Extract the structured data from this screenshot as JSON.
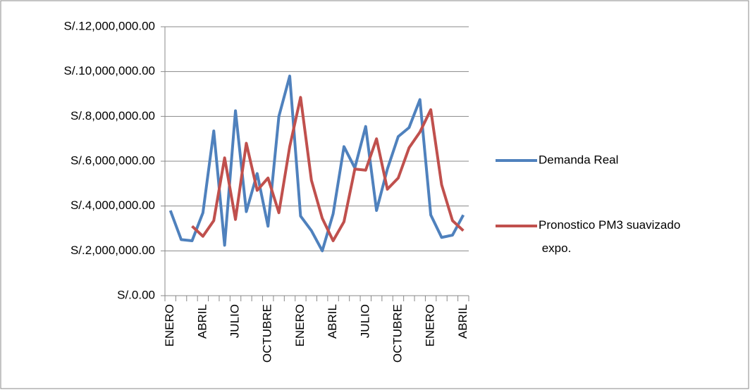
{
  "chart_data": {
    "type": "line",
    "categories": [
      "ENERO",
      null,
      null,
      "ABRIL",
      null,
      null,
      "JULIO",
      null,
      null,
      "OCTUBRE",
      null,
      null,
      "ENERO",
      null,
      null,
      "ABRIL",
      null,
      null,
      "JULIO",
      null,
      null,
      "OCTUBRE",
      null,
      null,
      "ENERO",
      null,
      null,
      "ABRIL"
    ],
    "series": [
      {
        "name": "Demanda Real",
        "color": "#4f81bd",
        "values": [
          3800000,
          2500000,
          2450000,
          3700000,
          7350000,
          2250000,
          8250000,
          3750000,
          5450000,
          3100000,
          8000000,
          9800000,
          3550000,
          2900000,
          2000000,
          3650000,
          6650000,
          5700000,
          7550000,
          3800000,
          5650000,
          7100000,
          7500000,
          8750000,
          3600000,
          2600000,
          2700000,
          3600000
        ]
      },
      {
        "name": "Pronostico PM3 suavizado expo.",
        "color": "#c0504d",
        "values": [
          null,
          null,
          3100000,
          2650000,
          3350000,
          6150000,
          3400000,
          6800000,
          4700000,
          5250000,
          3700000,
          6650000,
          8850000,
          5150000,
          3450000,
          2450000,
          3300000,
          5650000,
          5600000,
          7000000,
          4750000,
          5250000,
          6600000,
          7300000,
          8300000,
          4950000,
          3350000,
          2900000
        ]
      }
    ],
    "ylim": [
      0,
      12000000
    ],
    "yticks": [
      {
        "value": 0,
        "label": "S/.0.00"
      },
      {
        "value": 2000000,
        "label": "S/.2,000,000.00"
      },
      {
        "value": 4000000,
        "label": "S/.4,000,000.00"
      },
      {
        "value": 6000000,
        "label": "S/.6,000,000.00"
      },
      {
        "value": 8000000,
        "label": "S/.8,000,000.00"
      },
      {
        "value": 10000000,
        "label": "S/.10,000,000.00"
      },
      {
        "value": 12000000,
        "label": "S/.12,000,000.00"
      }
    ],
    "grid": true,
    "legend": "right"
  }
}
